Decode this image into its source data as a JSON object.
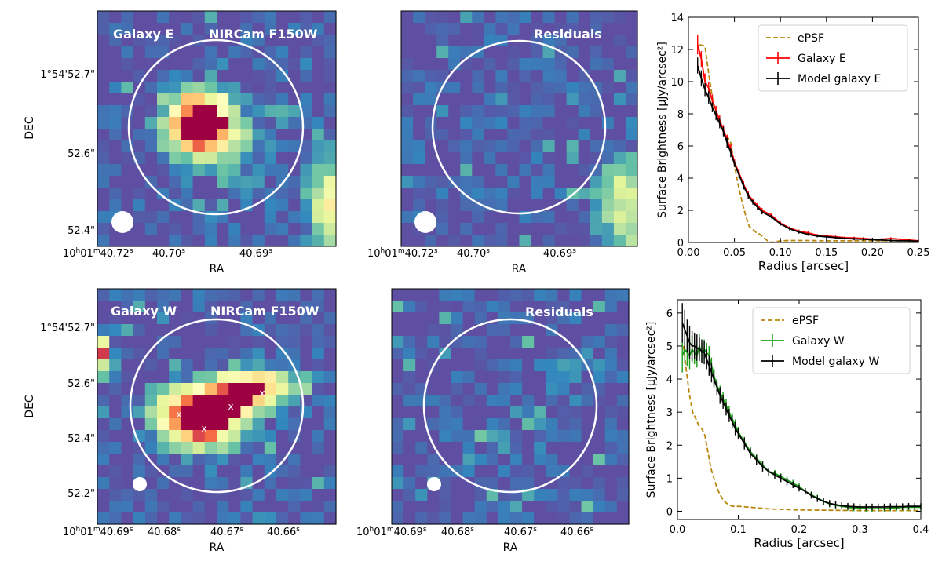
{
  "figure": {
    "rows": [
      {
        "galaxy": "E",
        "panels": [
          {
            "role": "image",
            "label_left": "Galaxy E",
            "label_right": "NIRCam F150W",
            "ylabel": "DEC",
            "xlabel": "RA",
            "dec_ticks": [
              "1°54'52.7\"",
              "52.6\"",
              "52.4\""
            ],
            "ra_ticks": [
              "10h01m40.72s",
              "40.70s",
              "40.69s"
            ],
            "ra_ticks_parts": [
              [
                "10",
                "h",
                "01",
                "m",
                "40.72",
                "s"
              ],
              [
                "40.70",
                "s"
              ],
              [
                "40.69",
                "s"
              ]
            ]
          },
          {
            "role": "residual",
            "label_right": "Residuals",
            "xlabel": "RA",
            "ra_ticks_parts": [
              [
                "10",
                "h",
                "01",
                "m",
                "40.72",
                "s"
              ],
              [
                "40.70",
                "s"
              ],
              [
                "40.69",
                "s"
              ]
            ]
          }
        ]
      },
      {
        "galaxy": "W",
        "panels": [
          {
            "role": "image",
            "label_left": "Galaxy W",
            "label_right": "NIRCam F150W",
            "ylabel": "DEC",
            "xlabel": "RA",
            "dec_ticks": [
              "1°54'52.7\"",
              "52.6\"",
              "52.4\"",
              "52.2\""
            ],
            "ra_ticks_parts": [
              [
                "10",
                "h",
                "01",
                "m",
                "40.69",
                "s"
              ],
              [
                "40.68",
                "s"
              ],
              [
                "40.67",
                "s"
              ],
              [
                "40.66",
                "s"
              ]
            ],
            "markers": "x"
          },
          {
            "role": "residual",
            "label_right": "Residuals",
            "xlabel": "RA",
            "ra_ticks_parts": [
              [
                "10",
                "h",
                "01",
                "m",
                "40.69",
                "s"
              ],
              [
                "40.68",
                "s"
              ],
              [
                "40.67",
                "s"
              ],
              [
                "40.66",
                "s"
              ]
            ]
          }
        ]
      }
    ]
  },
  "colors": {
    "bg_cmap": "#5e4fa2",
    "ePSF": "#b8860b",
    "galaxy_E": "#ff0000",
    "galaxy_W": "#1a9e1a",
    "model": "#000000",
    "aperture": "#ffffff"
  },
  "chart_data": [
    {
      "type": "line",
      "panel": "top-right",
      "title": "",
      "xlabel": "Radius [arcsec]",
      "ylabel": "Surface Brightness [μJy/arcsec²]",
      "xlim": [
        0,
        0.25
      ],
      "ylim": [
        0,
        14
      ],
      "xticks": [
        "0.00",
        "0.05",
        "0.10",
        "0.15",
        "0.20",
        "0.25"
      ],
      "yticks": [
        "0",
        "2",
        "4",
        "6",
        "8",
        "10",
        "12",
        "14"
      ],
      "legend": "top-right",
      "series": [
        {
          "name": "ePSF",
          "style": "dashed",
          "x": [
            0.012,
            0.018,
            0.022,
            0.026,
            0.03,
            0.034,
            0.038,
            0.042,
            0.046,
            0.05,
            0.054,
            0.058,
            0.062,
            0.066,
            0.07,
            0.074,
            0.078,
            0.082,
            0.086,
            0.09,
            0.095,
            0.1,
            0.11,
            0.13,
            0.15,
            0.2,
            0.25
          ],
          "y": [
            12.3,
            12.2,
            10.5,
            9.0,
            7.8,
            7.4,
            6.9,
            6.6,
            6.2,
            4.8,
            3.6,
            2.6,
            1.7,
            1.0,
            0.8,
            0.6,
            0.5,
            0.3,
            0.1,
            0.0,
            0.05,
            0.1,
            0.12,
            0.12,
            0.1,
            0.1,
            0.1
          ]
        },
        {
          "name": "Galaxy E",
          "style": "errorbar",
          "x": [
            0.01,
            0.014,
            0.018,
            0.022,
            0.026,
            0.03,
            0.034,
            0.038,
            0.042,
            0.046,
            0.05,
            0.055,
            0.06,
            0.065,
            0.07,
            0.075,
            0.08,
            0.09,
            0.1,
            0.11,
            0.12,
            0.13,
            0.14,
            0.15,
            0.16,
            0.17,
            0.18,
            0.19,
            0.2,
            0.21,
            0.22,
            0.23,
            0.24,
            0.25
          ],
          "y": [
            12.3,
            11.4,
            10.0,
            9.6,
            8.8,
            8.2,
            7.6,
            7.0,
            6.4,
            5.8,
            5.0,
            4.3,
            3.6,
            3.0,
            2.6,
            2.3,
            2.0,
            1.7,
            1.2,
            0.9,
            0.7,
            0.6,
            0.45,
            0.4,
            0.35,
            0.3,
            0.28,
            0.25,
            0.2,
            0.2,
            0.25,
            0.2,
            0.15,
            0.1
          ],
          "yerr": [
            0.6,
            0.5,
            0.5,
            0.4,
            0.4,
            0.3,
            0.3,
            0.3,
            0.3,
            0.3,
            0.2,
            0.2,
            0.2,
            0.2,
            0.15,
            0.15,
            0.15,
            0.1,
            0.1,
            0.1,
            0.1,
            0.08,
            0.08,
            0.08,
            0.08,
            0.08,
            0.08,
            0.08,
            0.08,
            0.08,
            0.08,
            0.08,
            0.08,
            0.08
          ]
        },
        {
          "name": "Model galaxy E",
          "style": "errorbar",
          "x": [
            0.01,
            0.014,
            0.018,
            0.022,
            0.026,
            0.03,
            0.034,
            0.038,
            0.042,
            0.046,
            0.05,
            0.055,
            0.06,
            0.065,
            0.07,
            0.075,
            0.08,
            0.09,
            0.1,
            0.11,
            0.12,
            0.13,
            0.14,
            0.15,
            0.16,
            0.17,
            0.18,
            0.19,
            0.2,
            0.21,
            0.22,
            0.23,
            0.24,
            0.25
          ],
          "y": [
            11.0,
            10.2,
            9.5,
            9.0,
            8.4,
            7.9,
            7.4,
            6.9,
            6.2,
            5.6,
            4.9,
            4.2,
            3.5,
            2.9,
            2.5,
            2.2,
            1.9,
            1.6,
            1.15,
            0.85,
            0.65,
            0.5,
            0.4,
            0.35,
            0.3,
            0.25,
            0.22,
            0.2,
            0.17,
            0.15,
            0.12,
            0.1,
            0.1,
            0.08
          ],
          "yerr": [
            0.5,
            0.5,
            0.4,
            0.4,
            0.3,
            0.3,
            0.3,
            0.3,
            0.3,
            0.3,
            0.2,
            0.2,
            0.2,
            0.2,
            0.15,
            0.15,
            0.15,
            0.1,
            0.1,
            0.1,
            0.1,
            0.08,
            0.08,
            0.08,
            0.08,
            0.08,
            0.08,
            0.08,
            0.08,
            0.08,
            0.08,
            0.08,
            0.08,
            0.08
          ]
        }
      ]
    },
    {
      "type": "line",
      "panel": "bottom-right",
      "title": "",
      "xlabel": "Radius [arcsec]",
      "ylabel": "Surface Brightness [μJy/arcsec²]",
      "xlim": [
        0,
        0.4
      ],
      "ylim": [
        -0.25,
        6.4
      ],
      "xticks": [
        "0.0",
        "0.1",
        "0.2",
        "0.3",
        "0.4"
      ],
      "yticks": [
        "0",
        "1",
        "2",
        "3",
        "4",
        "5",
        "6"
      ],
      "legend": "top-right",
      "series": [
        {
          "name": "ePSF",
          "style": "dashed",
          "x": [
            0.01,
            0.015,
            0.02,
            0.025,
            0.03,
            0.035,
            0.04,
            0.045,
            0.05,
            0.055,
            0.06,
            0.065,
            0.07,
            0.075,
            0.08,
            0.085,
            0.09,
            0.1,
            0.12,
            0.15,
            0.2,
            0.3,
            0.4
          ],
          "y": [
            5.0,
            4.2,
            3.5,
            3.0,
            2.8,
            2.6,
            2.5,
            2.3,
            1.8,
            1.3,
            1.0,
            0.7,
            0.5,
            0.35,
            0.25,
            0.2,
            0.15,
            0.15,
            0.12,
            0.07,
            0.04,
            0.02,
            0.02
          ]
        },
        {
          "name": "Galaxy W",
          "style": "errorbar",
          "x": [
            0.008,
            0.012,
            0.016,
            0.02,
            0.024,
            0.028,
            0.032,
            0.036,
            0.04,
            0.044,
            0.048,
            0.052,
            0.056,
            0.06,
            0.065,
            0.07,
            0.075,
            0.08,
            0.085,
            0.09,
            0.095,
            0.1,
            0.11,
            0.12,
            0.13,
            0.14,
            0.15,
            0.16,
            0.17,
            0.18,
            0.19,
            0.2,
            0.21,
            0.22,
            0.23,
            0.24,
            0.25,
            0.26,
            0.27,
            0.28,
            0.29,
            0.3,
            0.31,
            0.32,
            0.33,
            0.34,
            0.35,
            0.36,
            0.37,
            0.38,
            0.39,
            0.4
          ],
          "y": [
            4.7,
            4.9,
            4.8,
            4.7,
            4.9,
            4.8,
            4.7,
            5.0,
            4.8,
            4.9,
            4.8,
            4.7,
            4.4,
            4.1,
            3.8,
            3.6,
            3.4,
            3.2,
            3.0,
            2.8,
            2.6,
            2.4,
            2.1,
            1.8,
            1.6,
            1.4,
            1.2,
            1.15,
            1.05,
            0.95,
            0.85,
            0.75,
            0.6,
            0.5,
            0.4,
            0.3,
            0.22,
            0.18,
            0.15,
            0.12,
            0.1,
            0.1,
            0.08,
            0.08,
            0.08,
            0.08,
            0.1,
            0.1,
            0.12,
            0.12,
            0.12,
            0.12
          ],
          "yerr": [
            0.5,
            0.4,
            0.4,
            0.4,
            0.4,
            0.35,
            0.35,
            0.35,
            0.3,
            0.3,
            0.3,
            0.3,
            0.25,
            0.25,
            0.2,
            0.2,
            0.2,
            0.2,
            0.18,
            0.18,
            0.18,
            0.15,
            0.15,
            0.15,
            0.12,
            0.12,
            0.12,
            0.1,
            0.1,
            0.1,
            0.1,
            0.1,
            0.1,
            0.1,
            0.1,
            0.1,
            0.1,
            0.1,
            0.1,
            0.1,
            0.1,
            0.1,
            0.1,
            0.1,
            0.1,
            0.1,
            0.1,
            0.1,
            0.1,
            0.1,
            0.1,
            0.1
          ]
        },
        {
          "name": "Model galaxy W",
          "style": "errorbar",
          "x": [
            0.008,
            0.012,
            0.016,
            0.02,
            0.024,
            0.028,
            0.032,
            0.036,
            0.04,
            0.044,
            0.048,
            0.052,
            0.056,
            0.06,
            0.065,
            0.07,
            0.075,
            0.08,
            0.085,
            0.09,
            0.095,
            0.1,
            0.11,
            0.12,
            0.13,
            0.14,
            0.15,
            0.16,
            0.17,
            0.18,
            0.19,
            0.2,
            0.21,
            0.22,
            0.23,
            0.24,
            0.25,
            0.26,
            0.27,
            0.28,
            0.29,
            0.3,
            0.31,
            0.32,
            0.33,
            0.34,
            0.35,
            0.36,
            0.37,
            0.38,
            0.39,
            0.4
          ],
          "y": [
            5.7,
            5.5,
            5.3,
            5.1,
            5.0,
            5.0,
            4.95,
            4.9,
            4.85,
            4.8,
            4.6,
            4.4,
            4.2,
            4.0,
            3.75,
            3.5,
            3.3,
            3.1,
            2.9,
            2.7,
            2.5,
            2.35,
            2.05,
            1.75,
            1.55,
            1.35,
            1.2,
            1.1,
            1.0,
            0.9,
            0.8,
            0.7,
            0.6,
            0.48,
            0.38,
            0.3,
            0.24,
            0.2,
            0.17,
            0.15,
            0.14,
            0.13,
            0.13,
            0.13,
            0.13,
            0.13,
            0.14,
            0.14,
            0.14,
            0.15,
            0.15,
            0.15
          ],
          "yerr": [
            0.6,
            0.6,
            0.5,
            0.5,
            0.45,
            0.4,
            0.4,
            0.35,
            0.35,
            0.35,
            0.3,
            0.3,
            0.3,
            0.25,
            0.25,
            0.25,
            0.2,
            0.2,
            0.2,
            0.2,
            0.2,
            0.18,
            0.18,
            0.15,
            0.15,
            0.15,
            0.12,
            0.12,
            0.12,
            0.12,
            0.1,
            0.1,
            0.1,
            0.1,
            0.1,
            0.1,
            0.1,
            0.1,
            0.1,
            0.1,
            0.1,
            0.1,
            0.1,
            0.1,
            0.1,
            0.1,
            0.1,
            0.1,
            0.1,
            0.1,
            0.1,
            0.1
          ]
        }
      ]
    }
  ]
}
